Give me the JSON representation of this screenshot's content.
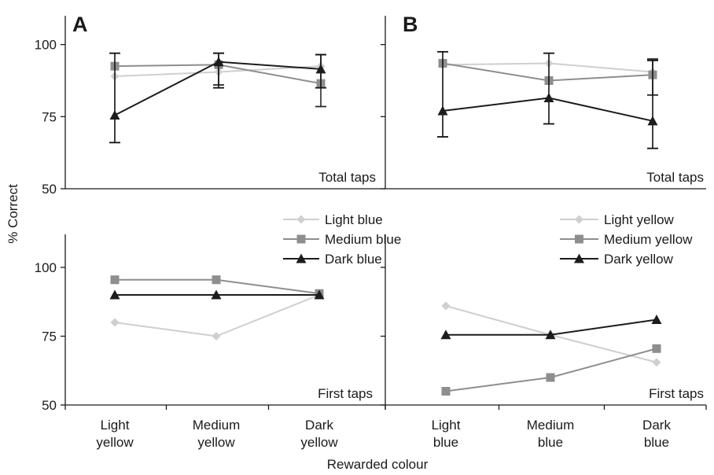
{
  "ylabel": "% Correct",
  "xlabel": "Rewarded colour",
  "colors": {
    "light": "#cfcfcf",
    "medium": "#8e8e8e",
    "dark": "#1c1c1c"
  },
  "chart_data": [
    {
      "type": "line",
      "panel": "A",
      "corner_label": "Total taps",
      "categories": [
        "Light yellow",
        "Medium yellow",
        "Dark yellow"
      ],
      "ylim": [
        50,
        110
      ],
      "yticks": [
        50,
        75,
        100
      ],
      "series": [
        {
          "key": "light",
          "marker": "diamond",
          "values": [
            89,
            90.5,
            92.5
          ],
          "err_lo": [
            null,
            null,
            null
          ],
          "err_hi": [
            null,
            null,
            null
          ]
        },
        {
          "key": "medium",
          "marker": "square",
          "values": [
            92.5,
            93,
            86.5
          ],
          "err_lo": [
            null,
            86,
            78.5
          ],
          "err_hi": [
            null,
            97,
            96.5
          ]
        },
        {
          "key": "dark",
          "marker": "triangle",
          "values": [
            75.5,
            94,
            91.5
          ],
          "err_lo": [
            66,
            85,
            85
          ],
          "err_hi": [
            97,
            97,
            96.5
          ]
        }
      ]
    },
    {
      "type": "line",
      "panel": "B",
      "corner_label": "Total taps",
      "categories": [
        "Light blue",
        "Medium blue",
        "Dark blue"
      ],
      "ylim": [
        50,
        110
      ],
      "yticks": [
        50,
        75,
        100
      ],
      "series": [
        {
          "key": "light",
          "marker": "diamond",
          "values": [
            93,
            93.5,
            90.5
          ],
          "err_lo": [
            null,
            null,
            null
          ],
          "err_hi": [
            null,
            null,
            null
          ]
        },
        {
          "key": "medium",
          "marker": "square",
          "values": [
            93.5,
            87.5,
            89.5
          ],
          "err_lo": [
            null,
            null,
            82.5
          ],
          "err_hi": [
            null,
            null,
            95
          ]
        },
        {
          "key": "dark",
          "marker": "triangle",
          "values": [
            77,
            81.5,
            73.5
          ],
          "err_lo": [
            68,
            72.5,
            64
          ],
          "err_hi": [
            97.5,
            97,
            94.5
          ]
        }
      ]
    },
    {
      "type": "line",
      "panel": "",
      "corner_label": "First taps",
      "categories": [
        "Light yellow",
        "Medium yellow",
        "Dark yellow"
      ],
      "ylim": [
        50,
        112
      ],
      "yticks": [
        50,
        75,
        100
      ],
      "legend": [
        "Light blue",
        "Medium blue",
        "Dark blue"
      ],
      "series": [
        {
          "key": "light",
          "marker": "diamond",
          "name": "Light blue",
          "values": [
            80,
            75,
            90
          ]
        },
        {
          "key": "medium",
          "marker": "square",
          "name": "Medium blue",
          "values": [
            95.5,
            95.5,
            90.5
          ]
        },
        {
          "key": "dark",
          "marker": "triangle",
          "name": "Dark blue",
          "values": [
            90,
            90,
            90
          ]
        }
      ]
    },
    {
      "type": "line",
      "panel": "",
      "corner_label": "First taps",
      "categories": [
        "Light blue",
        "Medium blue",
        "Dark blue"
      ],
      "ylim": [
        50,
        112
      ],
      "yticks": [
        50,
        75,
        100
      ],
      "legend": [
        "Light yellow",
        "Medium yellow",
        "Dark yellow"
      ],
      "series": [
        {
          "key": "light",
          "marker": "diamond",
          "name": "Light yellow",
          "values": [
            86,
            75.5,
            65.5
          ]
        },
        {
          "key": "medium",
          "marker": "square",
          "name": "Medium yellow",
          "values": [
            55,
            60,
            70.5
          ]
        },
        {
          "key": "dark",
          "marker": "triangle",
          "name": "Dark yellow",
          "values": [
            75.5,
            75.5,
            81
          ]
        }
      ]
    }
  ]
}
